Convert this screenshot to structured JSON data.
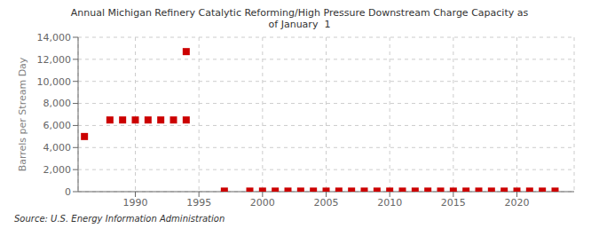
{
  "chart_data": {
    "type": "scatter",
    "title": "Annual Michigan Refinery Catalytic Reforming/High Pressure Downstream Charge Capacity as\nof January  1",
    "ylabel": "Barrels per Stream Day",
    "annotations": [
      "Source: U.S. Energy Information Administration"
    ],
    "color": "#cc0000",
    "marker": "square",
    "grid": true,
    "xlim": [
      1985.5,
      2024.5
    ],
    "ylim": [
      0,
      14000
    ],
    "xticks": [
      1990,
      1995,
      2000,
      2005,
      2010,
      2015,
      2020
    ],
    "yticks": [
      0,
      {
        "value": 2000,
        "label": "2,000"
      },
      {
        "value": 4000,
        "label": "4,000"
      },
      {
        "value": 6000,
        "label": "6,000"
      },
      {
        "value": 8000,
        "label": "8,000"
      },
      {
        "value": 10000,
        "label": "10,000"
      },
      {
        "value": 12000,
        "label": "12,000"
      },
      {
        "value": 14000,
        "label": "14,000"
      }
    ],
    "x": [
      1986,
      1988,
      1989,
      1990,
      1991,
      1992,
      1993,
      1994,
      1994,
      1997,
      1999,
      2000,
      2001,
      2002,
      2003,
      2004,
      2005,
      2006,
      2007,
      2008,
      2009,
      2010,
      2011,
      2012,
      2013,
      2014,
      2015,
      2016,
      2017,
      2018,
      2019,
      2020,
      2021,
      2022,
      2023
    ],
    "values": [
      5000,
      6500,
      6500,
      6500,
      6500,
      6500,
      6500,
      12700,
      6500,
      50,
      50,
      50,
      50,
      50,
      50,
      50,
      50,
      50,
      50,
      50,
      50,
      50,
      50,
      50,
      50,
      50,
      50,
      50,
      50,
      50,
      50,
      50,
      50,
      50,
      50
    ]
  }
}
